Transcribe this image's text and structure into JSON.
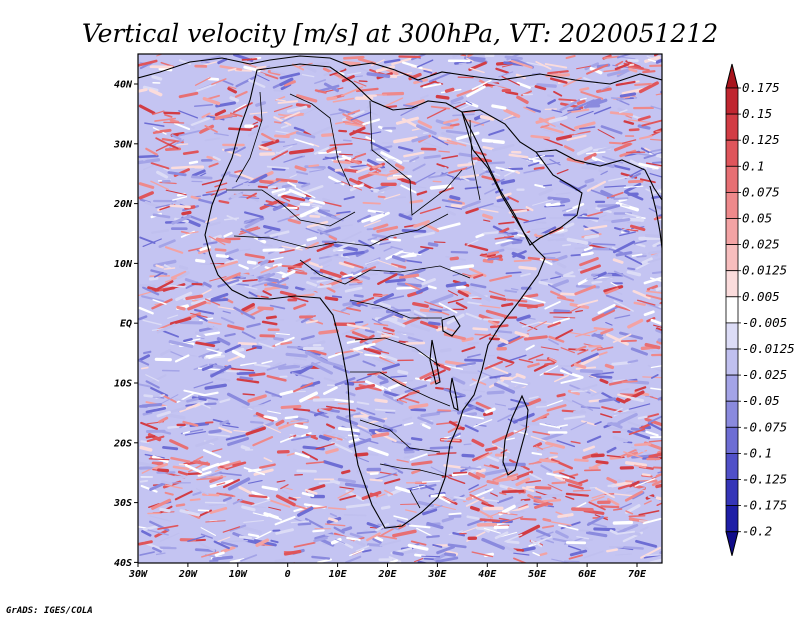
{
  "title": "Vertical velocity [m/s] at 300hPa, VT: 2020051212",
  "credit": "GrADS: IGES/COLA",
  "map": {
    "lat_labels": [
      "40N",
      "30N",
      "20N",
      "10N",
      "EQ",
      "10S",
      "20S",
      "30S",
      "40S"
    ],
    "lon_labels": [
      "30W",
      "20W",
      "10W",
      "0",
      "10E",
      "20E",
      "30E",
      "40E",
      "50E",
      "60E",
      "70E"
    ],
    "lon_range": [
      "30W",
      "75E"
    ],
    "lat_range": [
      "40S",
      "45N"
    ]
  },
  "colorbar": {
    "labels": [
      "0.175",
      "0.15",
      "0.125",
      "0.1",
      "0.075",
      "0.05",
      "0.025",
      "0.0125",
      "0.005",
      "-0.005",
      "-0.0125",
      "-0.025",
      "-0.05",
      "-0.075",
      "-0.1",
      "-0.125",
      "-0.175",
      "-0.2"
    ],
    "colors": [
      "#a8141c",
      "#c02630",
      "#d23c44",
      "#df555b",
      "#e76f73",
      "#ee898b",
      "#f3a3a4",
      "#f7bebe",
      "#fbdcdc",
      "#ffffff",
      "#dcdcf6",
      "#c0c0ef",
      "#a4a4e7",
      "#8a8ade",
      "#6d6dd4",
      "#5050c8",
      "#3535b8",
      "#1e1ea6",
      "#100c8a"
    ]
  },
  "colors": {
    "positive": "#e06060",
    "negative": "#7070e0",
    "coast": "#000000"
  }
}
